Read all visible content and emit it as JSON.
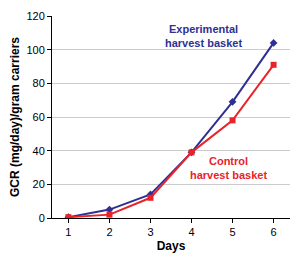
{
  "chart_data": {
    "type": "line",
    "x": [
      1,
      2,
      3,
      4,
      5,
      6
    ],
    "x_label": "Days",
    "y_label": "GCR (mg/day)/gram carriers",
    "xlim": [
      0.6,
      6.4
    ],
    "xticks": [
      1,
      2,
      3,
      4,
      5,
      6
    ],
    "ylim": [
      0,
      120
    ],
    "yticks": [
      0,
      20,
      40,
      60,
      80,
      100,
      120
    ],
    "grid": true,
    "series": [
      {
        "name": "Experimental harvest basket",
        "color": "#2e3192",
        "marker": "diamond",
        "values": [
          0.5,
          5,
          14,
          39,
          69,
          104
        ]
      },
      {
        "name": "Control harvest basket",
        "color": "#e8242a",
        "marker": "square",
        "values": [
          0.5,
          2,
          12,
          39,
          58,
          91
        ]
      }
    ]
  }
}
